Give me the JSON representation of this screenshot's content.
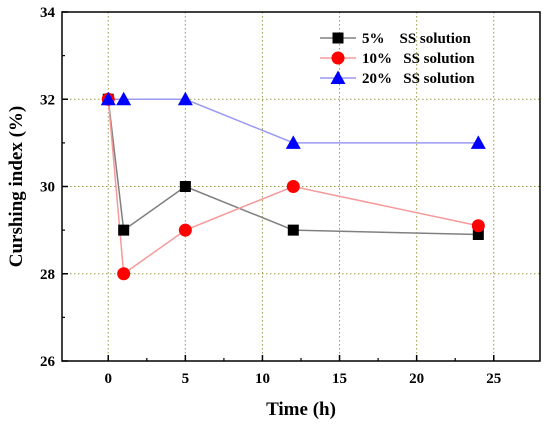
{
  "chart_data": {
    "type": "line",
    "xlabel": "Time (h)",
    "ylabel": "Curshing index (%)",
    "xlim": [
      -3,
      28
    ],
    "ylim": [
      26,
      34
    ],
    "x_ticks": [
      0,
      5,
      10,
      15,
      20,
      25
    ],
    "y_ticks": [
      26,
      28,
      30,
      32,
      34
    ],
    "x_tick_labels": [
      "0",
      "5",
      "10",
      "15",
      "20",
      "25"
    ],
    "y_tick_labels": [
      "26",
      "28",
      "30",
      "32",
      "34"
    ],
    "grid": true,
    "legend_position": "top-right",
    "series": [
      {
        "name": "5%    SS solution",
        "marker": "square",
        "marker_color": "#000000",
        "line_color": "#808080",
        "x": [
          0,
          1,
          5,
          12,
          24
        ],
        "y": [
          32,
          29,
          30,
          29,
          28.9
        ]
      },
      {
        "name": "10%   SS solution",
        "marker": "circle",
        "marker_color": "#ff0000",
        "line_color": "#f59a9a",
        "x": [
          0,
          1,
          5,
          12,
          24
        ],
        "y": [
          32,
          28,
          29,
          30,
          29.1
        ]
      },
      {
        "name": "20%   SS solution",
        "marker": "triangle",
        "marker_color": "#0000ff",
        "line_color": "#9a9af0",
        "x": [
          0,
          1,
          5,
          12,
          24
        ],
        "y": [
          32,
          32,
          32,
          31,
          31
        ]
      }
    ]
  }
}
